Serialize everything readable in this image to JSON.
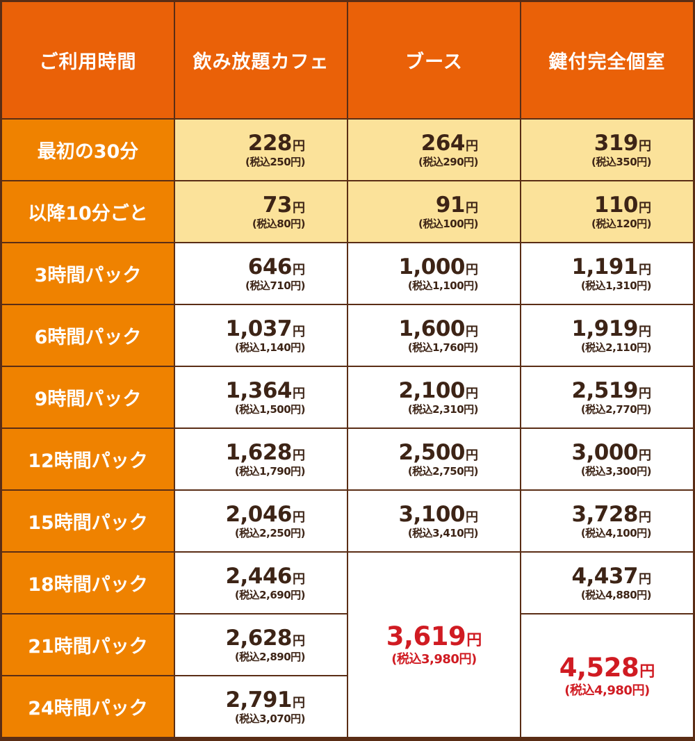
{
  "colors": {
    "header_bg": "#ea6108",
    "label_bg": "#ef8200",
    "highlight_bg": "#fbe29a",
    "border": "#5a2d15",
    "price_text": "#3d2416",
    "special_text": "#d01b22"
  },
  "headers": [
    "ご利用時間",
    "飲み放題カフェ",
    "ブース",
    "鍵付完全個室"
  ],
  "rows": [
    {
      "label": "最初の30分",
      "cafe": {
        "price": "228",
        "unit": "円",
        "tax": "(税込250円)"
      },
      "booth": {
        "price": "264",
        "unit": "円",
        "tax": "(税込290円)"
      },
      "room": {
        "price": "319",
        "unit": "円",
        "tax": "(税込350円)"
      }
    },
    {
      "label": "以降10分ごと",
      "cafe": {
        "price": "73",
        "unit": "円",
        "tax": "(税込80円)"
      },
      "booth": {
        "price": "91",
        "unit": "円",
        "tax": "(税込100円)"
      },
      "room": {
        "price": "110",
        "unit": "円",
        "tax": "(税込120円)"
      }
    },
    {
      "label": "3時間パック",
      "cafe": {
        "price": "646",
        "unit": "円",
        "tax": "(税込710円)"
      },
      "booth": {
        "price": "1,000",
        "unit": "円",
        "tax": "(税込1,100円)"
      },
      "room": {
        "price": "1,191",
        "unit": "円",
        "tax": "(税込1,310円)"
      }
    },
    {
      "label": "6時間パック",
      "cafe": {
        "price": "1,037",
        "unit": "円",
        "tax": "(税込1,140円)"
      },
      "booth": {
        "price": "1,600",
        "unit": "円",
        "tax": "(税込1,760円)"
      },
      "room": {
        "price": "1,919",
        "unit": "円",
        "tax": "(税込2,110円)"
      }
    },
    {
      "label": "9時間パック",
      "cafe": {
        "price": "1,364",
        "unit": "円",
        "tax": "(税込1,500円)"
      },
      "booth": {
        "price": "2,100",
        "unit": "円",
        "tax": "(税込2,310円)"
      },
      "room": {
        "price": "2,519",
        "unit": "円",
        "tax": "(税込2,770円)"
      }
    },
    {
      "label": "12時間パック",
      "cafe": {
        "price": "1,628",
        "unit": "円",
        "tax": "(税込1,790円)"
      },
      "booth": {
        "price": "2,500",
        "unit": "円",
        "tax": "(税込2,750円)"
      },
      "room": {
        "price": "3,000",
        "unit": "円",
        "tax": "(税込3,300円)"
      }
    },
    {
      "label": "15時間パック",
      "cafe": {
        "price": "2,046",
        "unit": "円",
        "tax": "(税込2,250円)"
      },
      "booth": {
        "price": "3,100",
        "unit": "円",
        "tax": "(税込3,410円)"
      },
      "room": {
        "price": "3,728",
        "unit": "円",
        "tax": "(税込4,100円)"
      }
    },
    {
      "label": "18時間パック",
      "cafe": {
        "price": "2,446",
        "unit": "円",
        "tax": "(税込2,690円)"
      },
      "room": {
        "price": "4,437",
        "unit": "円",
        "tax": "(税込4,880円)"
      }
    },
    {
      "label": "21時間パック",
      "cafe": {
        "price": "2,628",
        "unit": "円",
        "tax": "(税込2,890円)"
      }
    },
    {
      "label": "24時間パック",
      "cafe": {
        "price": "2,791",
        "unit": "円",
        "tax": "(税込3,070円)"
      }
    }
  ],
  "booth_long": {
    "price": "3,619",
    "unit": "円",
    "tax": "(税込3,980円)"
  },
  "room_long": {
    "price": "4,528",
    "unit": "円",
    "tax": "(税込4,980円)"
  }
}
